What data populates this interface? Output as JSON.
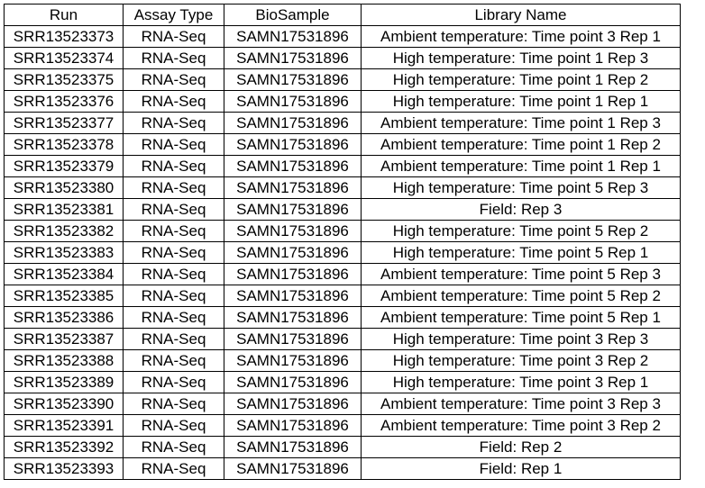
{
  "table": {
    "headers": [
      "Run",
      "Assay Type",
      "BioSample",
      "Library Name"
    ],
    "rows": [
      [
        "SRR13523373",
        "RNA-Seq",
        "SAMN17531896",
        "Ambient temperature: Time point 3 Rep 1"
      ],
      [
        "SRR13523374",
        "RNA-Seq",
        "SAMN17531896",
        "High temperature: Time point 1 Rep 3"
      ],
      [
        "SRR13523375",
        "RNA-Seq",
        "SAMN17531896",
        "High temperature: Time point 1 Rep 2"
      ],
      [
        "SRR13523376",
        "RNA-Seq",
        "SAMN17531896",
        "High temperature: Time point 1 Rep 1"
      ],
      [
        "SRR13523377",
        "RNA-Seq",
        "SAMN17531896",
        "Ambient temperature: Time point 1 Rep 3"
      ],
      [
        "SRR13523378",
        "RNA-Seq",
        "SAMN17531896",
        "Ambient temperature: Time point 1 Rep 2"
      ],
      [
        "SRR13523379",
        "RNA-Seq",
        "SAMN17531896",
        "Ambient temperature: Time point 1 Rep 1"
      ],
      [
        "SRR13523380",
        "RNA-Seq",
        "SAMN17531896",
        "High temperature: Time point 5 Rep 3"
      ],
      [
        "SRR13523381",
        "RNA-Seq",
        "SAMN17531896",
        "Field: Rep 3"
      ],
      [
        "SRR13523382",
        "RNA-Seq",
        "SAMN17531896",
        "High temperature: Time point 5 Rep 2"
      ],
      [
        "SRR13523383",
        "RNA-Seq",
        "SAMN17531896",
        "High temperature: Time point 5 Rep 1"
      ],
      [
        "SRR13523384",
        "RNA-Seq",
        "SAMN17531896",
        "Ambient temperature: Time point 5 Rep 3"
      ],
      [
        "SRR13523385",
        "RNA-Seq",
        "SAMN17531896",
        "Ambient temperature: Time point 5 Rep 2"
      ],
      [
        "SRR13523386",
        "RNA-Seq",
        "SAMN17531896",
        "Ambient temperature: Time point 5 Rep 1"
      ],
      [
        "SRR13523387",
        "RNA-Seq",
        "SAMN17531896",
        "High temperature: Time point 3 Rep 3"
      ],
      [
        "SRR13523388",
        "RNA-Seq",
        "SAMN17531896",
        "High temperature: Time point 3 Rep 2"
      ],
      [
        "SRR13523389",
        "RNA-Seq",
        "SAMN17531896",
        "High temperature: Time point 3 Rep 1"
      ],
      [
        "SRR13523390",
        "RNA-Seq",
        "SAMN17531896",
        "Ambient temperature: Time point 3 Rep 3"
      ],
      [
        "SRR13523391",
        "RNA-Seq",
        "SAMN17531896",
        "Ambient temperature: Time point 3 Rep 2"
      ],
      [
        "SRR13523392",
        "RNA-Seq",
        "SAMN17531896",
        "Field: Rep 2"
      ],
      [
        "SRR13523393",
        "RNA-Seq",
        "SAMN17531896",
        "Field: Rep 1"
      ]
    ]
  }
}
